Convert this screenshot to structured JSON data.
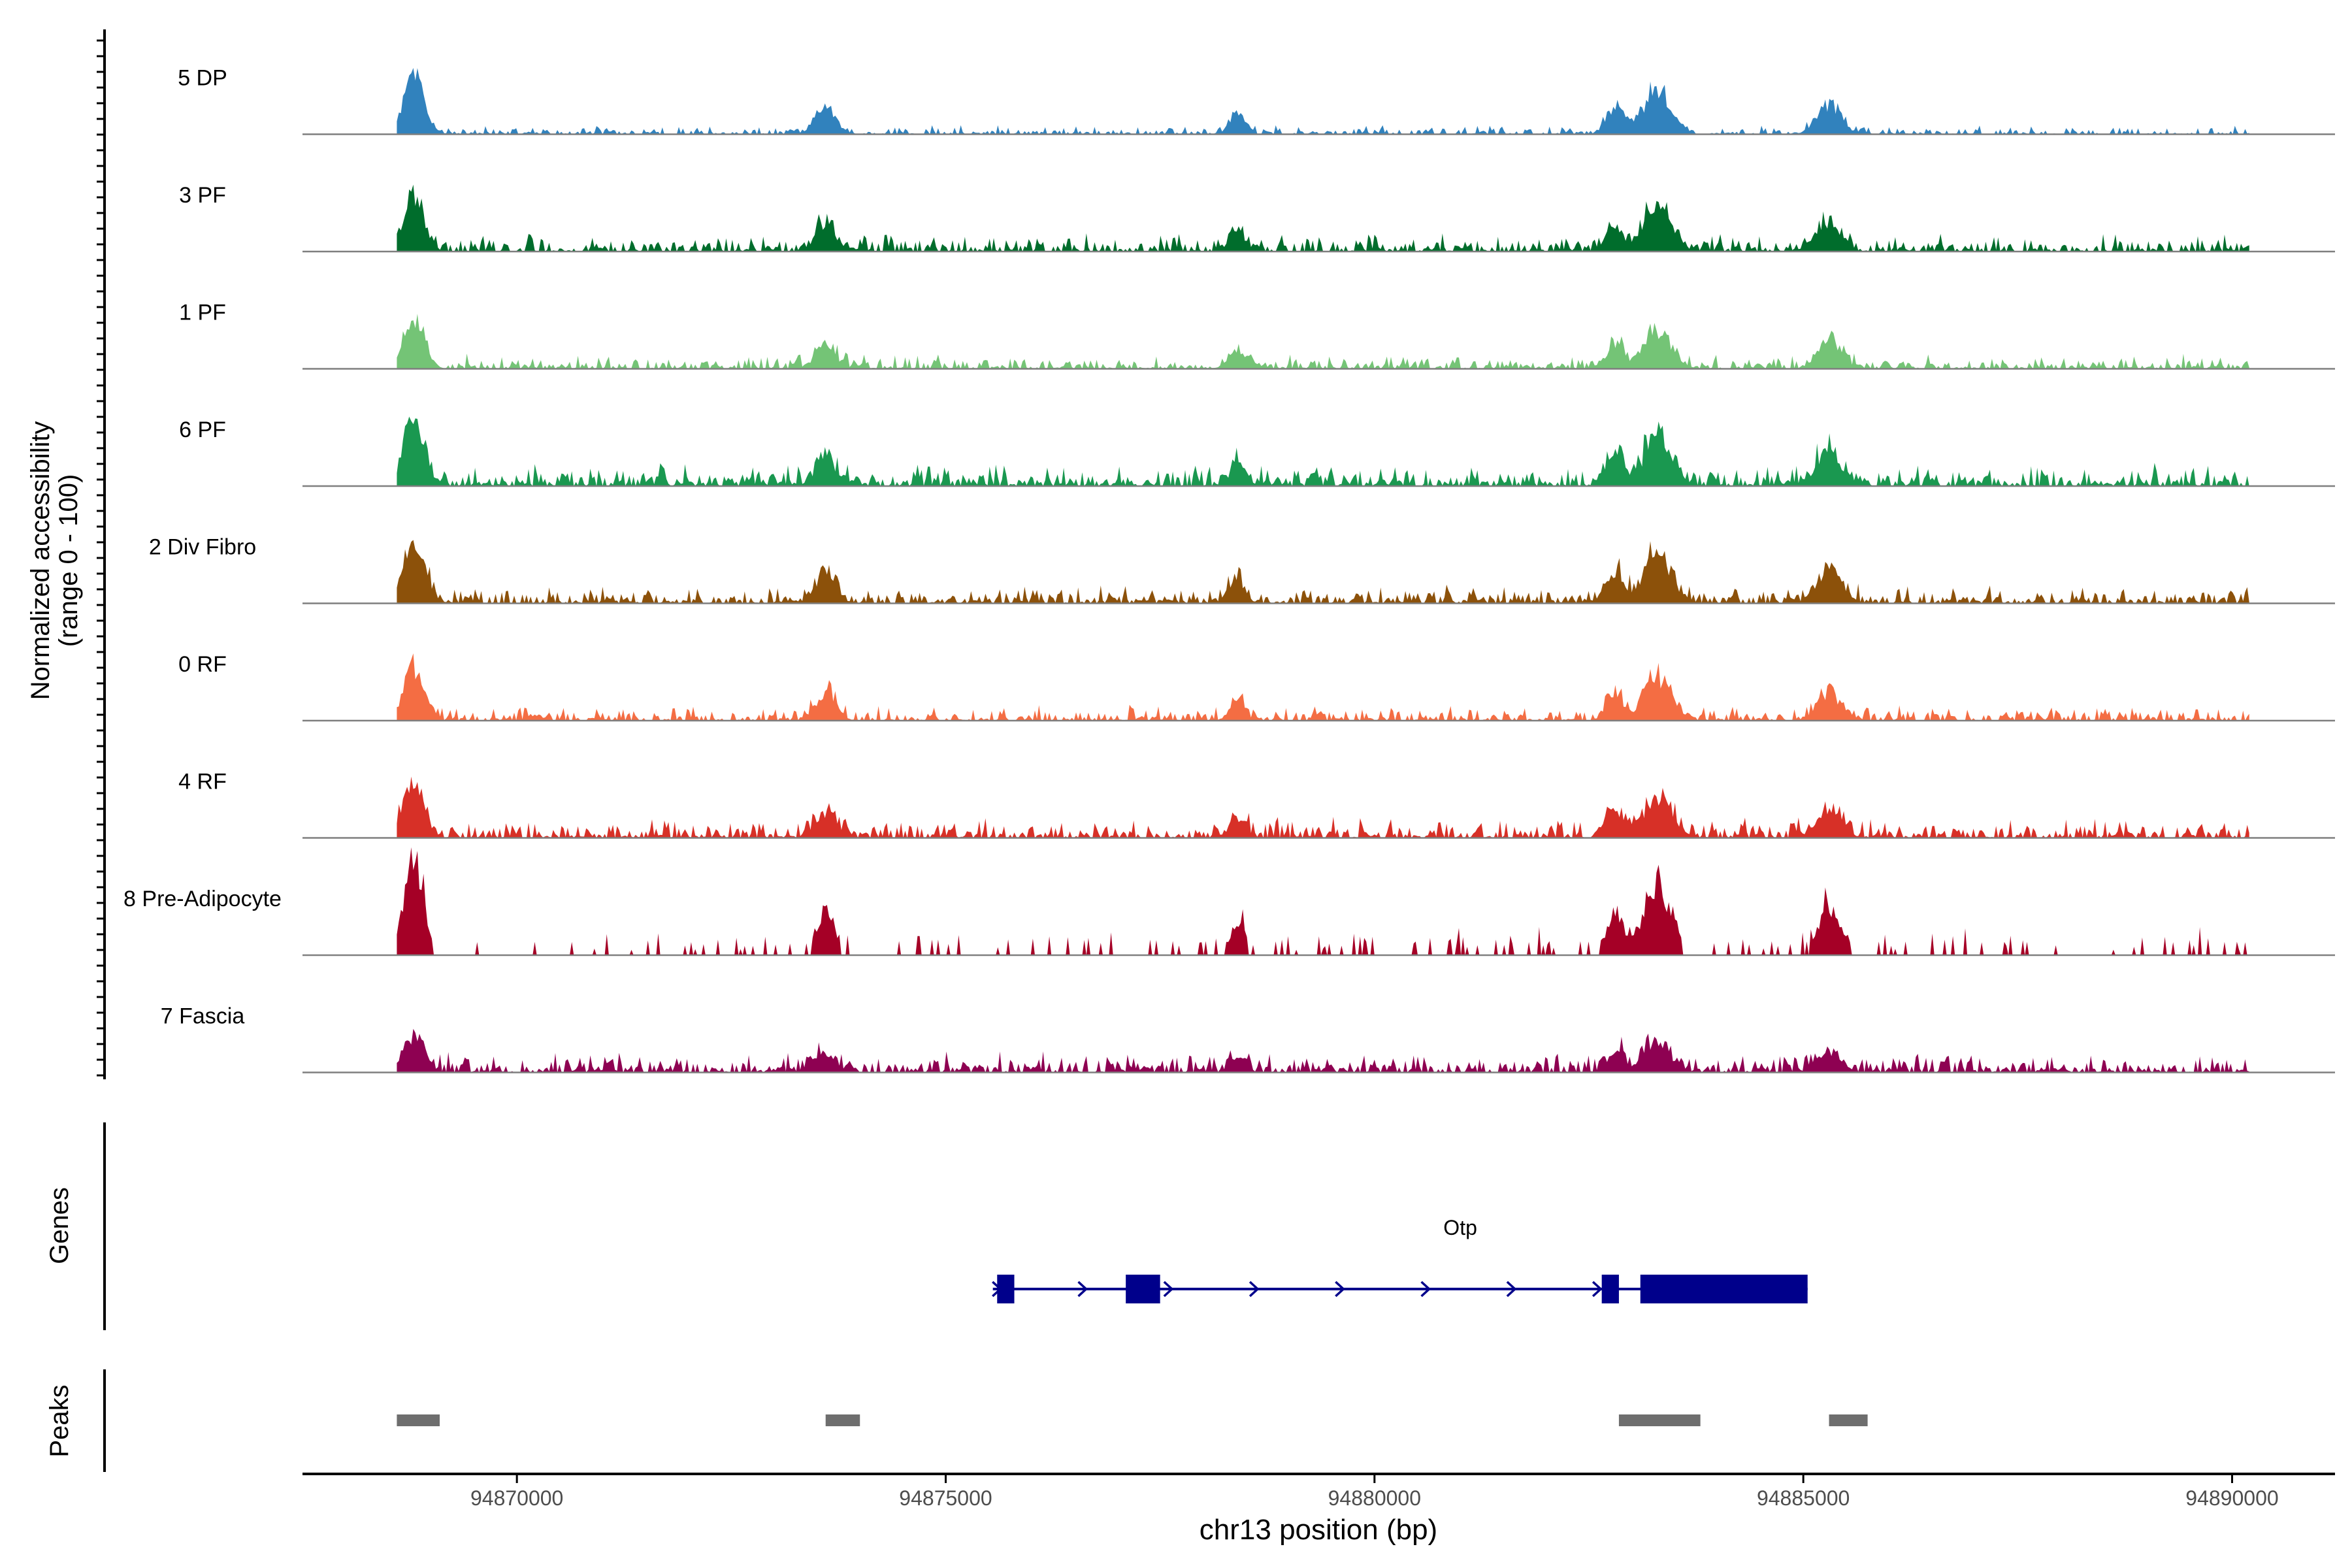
{
  "chart_data": {
    "type": "area",
    "title": "",
    "ylabel_line1": "Normalized accessibility",
    "ylabel_line2": "(range 0 - 100)",
    "xlabel": "chr13 position (bp)",
    "xlim": [
      94867500,
      94891200
    ],
    "ylim": [
      0,
      100
    ],
    "x_ticks": [
      94870000,
      94875000,
      94880000,
      94885000,
      94890000
    ],
    "x_tick_labels": [
      "94870000",
      "94875000",
      "94880000",
      "94885000",
      "94890000"
    ],
    "tracks": [
      {
        "name": "5 DP",
        "color": "#3182BD",
        "scale": 0.55,
        "noise": 0.045,
        "dense": 0.8,
        "seed": 11
      },
      {
        "name": "3 PF",
        "color": "#006D2C",
        "scale": 0.52,
        "noise": 0.09,
        "dense": 0.9,
        "seed": 23
      },
      {
        "name": "1 PF",
        "color": "#74C476",
        "scale": 0.48,
        "noise": 0.075,
        "dense": 0.85,
        "seed": 37
      },
      {
        "name": "6 PF",
        "color": "#1A9850",
        "scale": 0.56,
        "noise": 0.11,
        "dense": 0.95,
        "seed": 41
      },
      {
        "name": "2 Div Fibro",
        "color": "#8C510A",
        "scale": 0.62,
        "noise": 0.09,
        "dense": 0.9,
        "seed": 53
      },
      {
        "name": "0 RF",
        "color": "#F46D43",
        "scale": 0.5,
        "noise": 0.08,
        "dense": 0.9,
        "seed": 67
      },
      {
        "name": "4 RF",
        "color": "#D73027",
        "scale": 0.5,
        "noise": 0.1,
        "dense": 0.9,
        "seed": 71
      },
      {
        "name": "8 Pre-Adipocyte",
        "color": "#A50026",
        "scale": 0.88,
        "noise": 0.14,
        "dense": 0.35,
        "seed": 83
      },
      {
        "name": "7 Fascia",
        "color": "#8E0152",
        "scale": 0.35,
        "noise": 0.1,
        "dense": 0.9,
        "seed": 97
      }
    ],
    "peaks_profile": [
      {
        "center": 94868800,
        "width": 120,
        "height": 1.0
      },
      {
        "center": 94873600,
        "width": 120,
        "height": 0.45
      },
      {
        "center": 94878400,
        "width": 90,
        "height": 0.35
      },
      {
        "center": 94882800,
        "width": 100,
        "height": 0.45
      },
      {
        "center": 94883300,
        "width": 160,
        "height": 0.75
      },
      {
        "center": 94885300,
        "width": 140,
        "height": 0.5
      }
    ],
    "genes_label": "Genes",
    "gene": {
      "name": "Otp",
      "start": 94875550,
      "end": 94885050,
      "strand": "+",
      "exons": [
        [
          94875600,
          94875800
        ],
        [
          94877100,
          94877500
        ],
        [
          94882650,
          94882850
        ],
        [
          94883100,
          94885050
        ]
      ],
      "color": "#00008B"
    },
    "peaks_label": "Peaks",
    "peaks": [
      [
        94868600,
        94869100
      ],
      [
        94873600,
        94874000
      ],
      [
        94882850,
        94883800
      ],
      [
        94885300,
        94885750
      ]
    ],
    "peak_color": "#6E6E6E"
  }
}
